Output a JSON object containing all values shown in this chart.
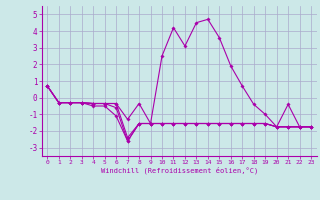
{
  "xlabel": "Windchill (Refroidissement éolien,°C)",
  "background_color": "#cce8e8",
  "grid_color": "#aaaacc",
  "line_color": "#aa00aa",
  "x": [
    0,
    1,
    2,
    3,
    4,
    5,
    6,
    7,
    8,
    9,
    10,
    11,
    12,
    13,
    14,
    15,
    16,
    17,
    18,
    19,
    20,
    21,
    22,
    23
  ],
  "series": [
    [
      0.7,
      -0.3,
      -0.3,
      -0.3,
      -0.35,
      -0.35,
      -0.35,
      -1.3,
      -0.35,
      -1.55,
      -1.55,
      -1.55,
      -1.55,
      -1.55,
      -1.55,
      -1.55,
      -1.55,
      -1.55,
      -1.55,
      -1.55,
      -1.75,
      -1.75,
      -1.75,
      -1.75
    ],
    [
      0.7,
      -0.3,
      -0.3,
      -0.3,
      -0.35,
      -0.35,
      -0.35,
      -2.4,
      -1.55,
      -1.55,
      -1.55,
      -1.55,
      -1.55,
      -1.55,
      -1.55,
      -1.55,
      -1.55,
      -1.55,
      -1.55,
      -1.55,
      -1.75,
      -1.75,
      -1.75,
      -1.75
    ],
    [
      0.7,
      -0.3,
      -0.3,
      -0.3,
      -0.35,
      -0.35,
      -0.6,
      -2.6,
      -1.55,
      -1.55,
      -1.55,
      -1.55,
      -1.55,
      -1.55,
      -1.55,
      -1.55,
      -1.55,
      -1.55,
      -1.55,
      -1.55,
      -1.75,
      -1.75,
      -1.75,
      -1.75
    ],
    [
      0.7,
      -0.3,
      -0.3,
      -0.3,
      -0.5,
      -0.5,
      -1.1,
      -2.6,
      -1.55,
      -1.55,
      2.5,
      4.2,
      3.1,
      4.5,
      4.7,
      3.6,
      1.9,
      0.7,
      -0.4,
      -1.0,
      -1.75,
      -0.4,
      -1.75,
      -1.75
    ]
  ],
  "ylim": [
    -3.5,
    5.5
  ],
  "yticks": [
    -3,
    -2,
    -1,
    0,
    1,
    2,
    3,
    4,
    5
  ],
  "xlim": [
    -0.5,
    23.5
  ],
  "xticks": [
    0,
    1,
    2,
    3,
    4,
    5,
    6,
    7,
    8,
    9,
    10,
    11,
    12,
    13,
    14,
    15,
    16,
    17,
    18,
    19,
    20,
    21,
    22,
    23
  ],
  "xtick_labels": [
    "0",
    "1",
    "2",
    "3",
    "4",
    "5",
    "6",
    "7",
    "8",
    "9",
    "10",
    "11",
    "12",
    "13",
    "14",
    "15",
    "16",
    "17",
    "18",
    "19",
    "20",
    "21",
    "22",
    "23"
  ]
}
